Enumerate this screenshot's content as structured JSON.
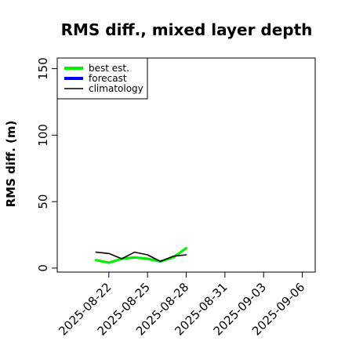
{
  "chart_data": {
    "type": "line",
    "title": "RMS diff., mixed layer depth",
    "ylabel": "RMS diff. (m)",
    "xlabel": "",
    "ylim": [
      -3,
      158
    ],
    "yticks": [
      0,
      50,
      100,
      150
    ],
    "xlim": [
      "2025-08-18",
      "2025-09-07"
    ],
    "xticks": [
      "2025-08-22",
      "2025-08-25",
      "2025-08-28",
      "2025-08-31",
      "2025-09-03",
      "2025-09-06"
    ],
    "highlight_tick": "2025-08-28",
    "grid": false,
    "legend_placement": "top-left",
    "series": [
      {
        "name": "best est.",
        "color": "#00ee00",
        "x": [
          "2025-08-21",
          "2025-08-22",
          "2025-08-23",
          "2025-08-24",
          "2025-08-25",
          "2025-08-26",
          "2025-08-27",
          "2025-08-28"
        ],
        "values": [
          6,
          4,
          7,
          8,
          7,
          5,
          8,
          15
        ]
      },
      {
        "name": "forecast",
        "color": "#0000ff",
        "x": [],
        "values": []
      },
      {
        "name": "climatology",
        "color": "#000000",
        "x": [
          "2025-08-21",
          "2025-08-22",
          "2025-08-23",
          "2025-08-24",
          "2025-08-25",
          "2025-08-26",
          "2025-08-27",
          "2025-08-28"
        ],
        "values": [
          12,
          11,
          7,
          12,
          10,
          5,
          9,
          10
        ]
      }
    ]
  }
}
